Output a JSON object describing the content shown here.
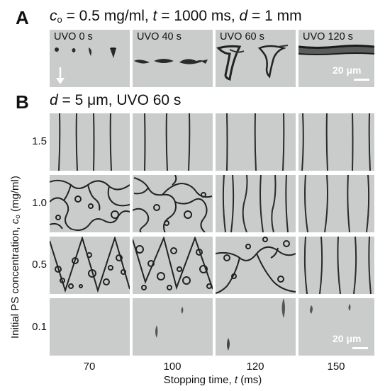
{
  "panel_a": {
    "letter": "A",
    "header_c": "c",
    "header_c_sub": "o",
    "header_c_value": " = 0.5 mg/ml, ",
    "header_t": "t",
    "header_t_value": " = 1000 ms, ",
    "header_d": "d",
    "header_d_value": " = 1 mm",
    "tiles": [
      {
        "label": "UVO 0 s"
      },
      {
        "label": "UVO 40 s"
      },
      {
        "label": "UVO 60 s"
      },
      {
        "label": "UVO 120 s"
      }
    ],
    "scale_bar": "20 μm"
  },
  "panel_b": {
    "letter": "B",
    "header_d": "d",
    "header_rest": " = 5 μm, UVO 60 s",
    "y_axis_label_pre": "Initial PS concentration, ",
    "y_axis_label_c": "c",
    "y_axis_label_sub": "o",
    "y_axis_label_post": " (mg/ml)",
    "row_labels": [
      "1.5",
      "1.0",
      "0.5",
      "0.1"
    ],
    "col_labels": [
      "70",
      "100",
      "120",
      "150"
    ],
    "x_axis_label_pre": "Stopping time, ",
    "x_axis_label_t": "t",
    "x_axis_label_post": " (ms)",
    "scale_bar": "20 μm"
  }
}
